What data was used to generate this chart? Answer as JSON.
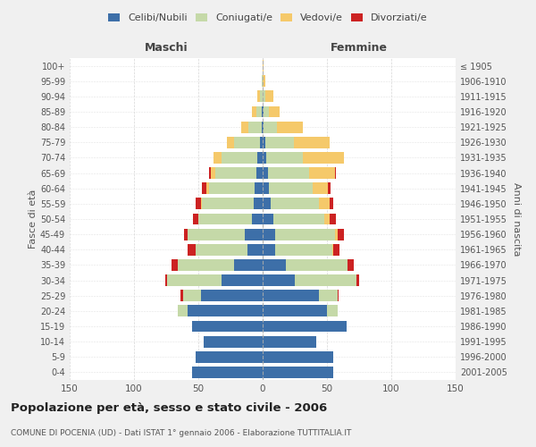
{
  "age_groups": [
    "100+",
    "95-99",
    "90-94",
    "85-89",
    "80-84",
    "75-79",
    "70-74",
    "65-69",
    "60-64",
    "55-59",
    "50-54",
    "45-49",
    "40-44",
    "35-39",
    "30-34",
    "25-29",
    "20-24",
    "15-19",
    "10-14",
    "5-9",
    "0-4"
  ],
  "birth_years": [
    "≤ 1905",
    "1906-1910",
    "1911-1915",
    "1916-1920",
    "1921-1925",
    "1926-1930",
    "1931-1935",
    "1936-1940",
    "1941-1945",
    "1946-1950",
    "1951-1955",
    "1956-1960",
    "1961-1965",
    "1966-1970",
    "1971-1975",
    "1976-1980",
    "1981-1985",
    "1986-1990",
    "1991-1995",
    "1996-2000",
    "2001-2005"
  ],
  "colors": {
    "celibi": "#3d6fa8",
    "coniugati": "#c5d9a8",
    "vedovi": "#f5c96a",
    "divorziati": "#cc2222"
  },
  "maschi": {
    "celibi": [
      0,
      0,
      0,
      1,
      1,
      2,
      4,
      5,
      6,
      7,
      8,
      14,
      12,
      22,
      32,
      48,
      58,
      55,
      46,
      52,
      55
    ],
    "coniugati": [
      0,
      1,
      2,
      4,
      10,
      20,
      28,
      32,
      36,
      40,
      42,
      44,
      40,
      44,
      42,
      14,
      8,
      0,
      0,
      0,
      0
    ],
    "vedovi": [
      0,
      0,
      2,
      3,
      6,
      6,
      6,
      3,
      2,
      1,
      0,
      0,
      0,
      0,
      0,
      0,
      0,
      0,
      0,
      0,
      0
    ],
    "divorziati": [
      0,
      0,
      0,
      0,
      0,
      0,
      0,
      2,
      3,
      4,
      4,
      3,
      6,
      5,
      2,
      2,
      0,
      0,
      0,
      0,
      0
    ]
  },
  "femmine": {
    "celibi": [
      0,
      0,
      0,
      1,
      1,
      2,
      3,
      4,
      5,
      6,
      8,
      10,
      10,
      18,
      25,
      44,
      50,
      65,
      42,
      55,
      55
    ],
    "coniugati": [
      0,
      0,
      2,
      4,
      10,
      22,
      28,
      32,
      34,
      38,
      40,
      46,
      44,
      48,
      48,
      14,
      8,
      0,
      0,
      0,
      0
    ],
    "vedovi": [
      1,
      2,
      6,
      8,
      20,
      28,
      32,
      20,
      12,
      8,
      4,
      2,
      1,
      0,
      0,
      0,
      0,
      0,
      0,
      0,
      0
    ],
    "divorziati": [
      0,
      0,
      0,
      0,
      0,
      0,
      0,
      1,
      2,
      3,
      5,
      5,
      5,
      5,
      2,
      1,
      0,
      0,
      0,
      0,
      0
    ]
  },
  "title": "Popolazione per età, sesso e stato civile - 2006",
  "subtitle": "COMUNE DI POCENIA (UD) - Dati ISTAT 1° gennaio 2006 - Elaborazione TUTTITALIA.IT",
  "xlabel_left": "Maschi",
  "xlabel_right": "Femmine",
  "ylabel_left": "Fasce di età",
  "ylabel_right": "Anni di nascita",
  "xlim": 150,
  "legend_labels": [
    "Celibi/Nubili",
    "Coniugati/e",
    "Vedovi/e",
    "Divorziati/e"
  ],
  "bg_color": "#f0f0f0",
  "plot_bg_color": "#ffffff"
}
